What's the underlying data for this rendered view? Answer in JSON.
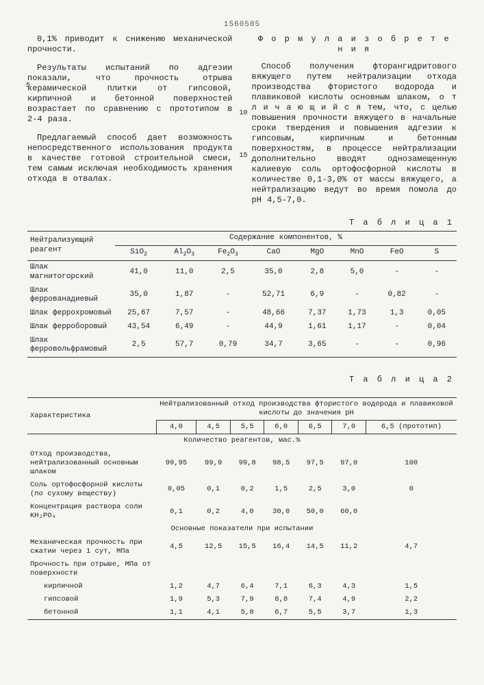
{
  "doc_number": "1560505",
  "left_column": {
    "p1": "0,1% приводит к снижению механической прочности.",
    "p2": "Результаты испытаний по адгезии показали, что прочность отрыва керамической плитки от гипсовой, кирпичной и бетонной поверхностей возрастает по сравнению с прототипом в 2-4 раза.",
    "p3": "Предлагаемый способ дает возможность непосредственного использования продукта в качестве готовой строительной смеси, тем самым исключая необходимость хранения отхода в отвалах."
  },
  "right_column": {
    "title": "Ф о р м у л а   и з о б р е т е н и я",
    "p1": "Способ получения фторангидритового вяжущего путем нейтрализации отхода производства фтористого водорода и плавиковой кислоты основным шлаком, о т л и ч а ю щ и й с я  тем, что, с целью повышения прочности вяжущего в начальные сроки твердения и повышения адгезии к гипсовым, кирпичным и бетонным поверхностям, в процессе нейтрализации дополнительно вводят однозамещенную калиевую соль ортофосфорной кислоты в количестве 0,1-3,0% от массы вяжущего, а нейтрализацию ведут во время помола до pH 4,5-7,0."
  },
  "line_marks": {
    "l5": "5",
    "l10": "10",
    "l15": "15"
  },
  "table1": {
    "label": "Т а б л и ц а 1",
    "header_rowlabel": "Нейтрализующий реагент",
    "header_group": "Содержание компонентов, %",
    "cols": [
      "SiO₂",
      "Al₂O₃",
      "Fe₂O₃",
      "CaO",
      "MgO",
      "MnO",
      "FeO",
      "S"
    ],
    "rows": [
      {
        "label": "Шлак магнитогорский",
        "v": [
          "41,0",
          "11,0",
          "2,5",
          "35,0",
          "2,8",
          "5,0",
          "-",
          "-"
        ]
      },
      {
        "label": "Шлак феррованадиевый",
        "v": [
          "35,0",
          "1,87",
          "-",
          "52,71",
          "6,9",
          "-",
          "0,82",
          "-"
        ]
      },
      {
        "label": "Шлак феррохромовый",
        "v": [
          "25,67",
          "7,57",
          "-",
          "48,66",
          "7,37",
          "1,73",
          "1,3",
          "0,05"
        ]
      },
      {
        "label": "Шлак ферроборовый",
        "v": [
          "43,54",
          "6,49",
          "-",
          "44,9",
          "1,61",
          "1,17",
          "-",
          "0,04"
        ]
      },
      {
        "label": "Шлак ферровольфрамовый",
        "v": [
          "2,5",
          "57,7",
          "0,79",
          "34,7",
          "3,65",
          "-",
          "-",
          "0,96"
        ]
      }
    ]
  },
  "table2": {
    "label": "Т а б л и ц а 2",
    "header_rowlabel": "Характеристика",
    "header_group": "Нейтрализованный отход производства фтористого водорода и плавиковой кислоты до значения pH",
    "ph_cols": [
      "4,0",
      "4,5",
      "5,5",
      "6,0",
      "6,5",
      "7,0",
      "6,5 (прототип)"
    ],
    "section1": "Количество реагентов, мас.%",
    "rows1": [
      {
        "label": "Отход производства, нейтрализованный основным шлаком",
        "v": [
          "99,95",
          "99,9",
          "99,8",
          "98,5",
          "97,5",
          "97,0",
          "100"
        ]
      },
      {
        "label": "Соль ортофосфорной кислоты (по сухому веществу)",
        "v": [
          "0,05",
          "0,1",
          "0,2",
          "1,5",
          "2,5",
          "3,0",
          "0"
        ]
      },
      {
        "label": "Концентрация раствора соли KH₂PO₄",
        "v": [
          "0,1",
          "0,2",
          "4,0",
          "30,0",
          "50,0",
          "60,0",
          ""
        ]
      }
    ],
    "section2": "Основные показатели при испытании",
    "rows2": [
      {
        "label": "Механическая прочность при сжатии через 1 сут, МПа",
        "v": [
          "4,5",
          "12,5",
          "15,5",
          "16,4",
          "14,5",
          "11,2",
          "4,7"
        ]
      }
    ],
    "rows3_label": "Прочность при отрыве, МПа от поверхности",
    "rows3": [
      {
        "label": "кирпичной",
        "v": [
          "1,2",
          "4,7",
          "6,4",
          "7,1",
          "6,3",
          "4,3",
          "1,5"
        ]
      },
      {
        "label": "гипсовой",
        "v": [
          "1,9",
          "5,3",
          "7,9",
          "8,8",
          "7,4",
          "4,9",
          "2,2"
        ]
      },
      {
        "label": "бетонной",
        "v": [
          "1,1",
          "4,1",
          "5,8",
          "6,7",
          "5,5",
          "3,7",
          "1,3"
        ]
      }
    ]
  }
}
